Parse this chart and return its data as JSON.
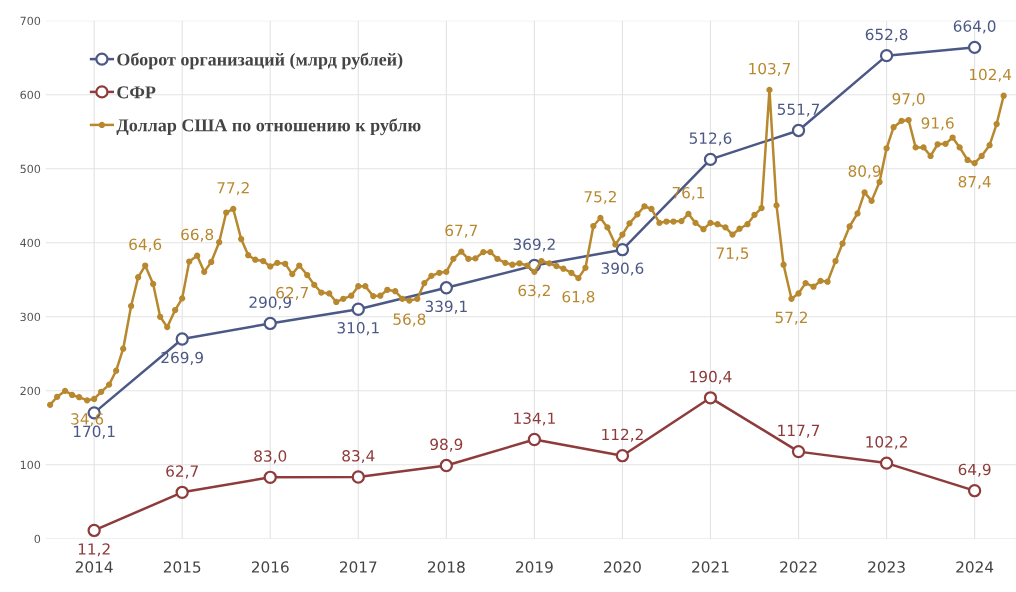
{
  "chart_data": {
    "type": "line",
    "x": [
      2014,
      2015,
      2016,
      2017,
      2018,
      2019,
      2020,
      2021,
      2022,
      2023,
      2024
    ],
    "series": [
      {
        "name": "Оборот организаций (млрд рублей)",
        "color": "#4c5885",
        "marker": "circle",
        "values": [
          170.1,
          269.9,
          290.9,
          310.1,
          339.1,
          369.2,
          390.6,
          512.6,
          551.7,
          652.8,
          664.0
        ],
        "value_labels": [
          "170,1",
          "269,9",
          "290,9",
          "310,1",
          "339,1",
          "369,2",
          "390,6",
          "512,6",
          "551,7",
          "652,8",
          "664,0"
        ]
      },
      {
        "name": "СФР",
        "color": "#8e3b3b",
        "marker": "circle",
        "values": [
          11.2,
          62.7,
          83.0,
          83.4,
          98.9,
          134.1,
          112.2,
          190.4,
          117.7,
          102.2,
          64.9
        ],
        "value_labels": [
          "11,2",
          "62,7",
          "83,0",
          "83,4",
          "98,9",
          "134,1",
          "112,2",
          "190,4",
          "117,7",
          "102,2",
          "64,9"
        ]
      },
      {
        "name": "Доллар США по отношению к рублю",
        "color": "#b8882f",
        "marker": "dot",
        "axis": "y2",
        "x": [
          2013.5,
          2013.58,
          2013.67,
          2013.75,
          2013.83,
          2013.92,
          2014.0,
          2014.08,
          2014.17,
          2014.25,
          2014.33,
          2014.42,
          2014.5,
          2014.58,
          2014.67,
          2014.75,
          2014.83,
          2014.92,
          2015.0,
          2015.08,
          2015.17,
          2015.25,
          2015.33,
          2015.42,
          2015.5,
          2015.58,
          2015.67,
          2015.75,
          2015.83,
          2015.92,
          2016.0,
          2016.08,
          2016.17,
          2016.25,
          2016.33,
          2016.42,
          2016.5,
          2016.58,
          2016.67,
          2016.75,
          2016.83,
          2016.92,
          2017.0,
          2017.08,
          2017.17,
          2017.25,
          2017.33,
          2017.42,
          2017.5,
          2017.58,
          2017.67,
          2017.75,
          2017.83,
          2017.92,
          2018.0,
          2018.08,
          2018.17,
          2018.25,
          2018.33,
          2018.42,
          2018.5,
          2018.58,
          2018.67,
          2018.75,
          2018.83,
          2018.92,
          2019.0,
          2019.08,
          2019.17,
          2019.25,
          2019.33,
          2019.42,
          2019.5,
          2019.58,
          2019.67,
          2019.75,
          2019.83,
          2019.92,
          2020.0,
          2020.08,
          2020.17,
          2020.25,
          2020.33,
          2020.42,
          2020.5,
          2020.58,
          2020.67,
          2020.75,
          2020.83,
          2020.92,
          2021.0,
          2021.08,
          2021.17,
          2021.25,
          2021.33,
          2021.42,
          2021.5,
          2021.58,
          2021.67,
          2021.75,
          2021.83,
          2021.92,
          2022.0,
          2022.08,
          2022.17,
          2022.25,
          2022.33,
          2022.42,
          2022.5,
          2022.58,
          2022.67,
          2022.75,
          2022.83,
          2022.92,
          2023.0,
          2023.08,
          2023.17,
          2023.25,
          2023.33,
          2023.42,
          2023.5,
          2023.58,
          2023.67,
          2023.75,
          2023.83,
          2023.92,
          2024.0,
          2024.08,
          2024.17,
          2024.25,
          2024.33
        ],
        "values": [
          33.6,
          35.4,
          36.7,
          35.8,
          35.3,
          34.6,
          34.9,
          36.5,
          38.1,
          41.2,
          46.1,
          55.6,
          62.0,
          64.6,
          60.5,
          53.2,
          50.9,
          54.7,
          57.3,
          65.5,
          66.8,
          63.2,
          65.4,
          69.8,
          76.4,
          77.2,
          70.5,
          66.9,
          65.9,
          65.6,
          64.4,
          65.2,
          65.0,
          62.7,
          64.6,
          62.5,
          60.3,
          58.6,
          58.4,
          56.5,
          57.2,
          57.9,
          60.0,
          60.0,
          57.8,
          57.9,
          59.2,
          58.9,
          57.2,
          56.8,
          57.2,
          60.7,
          62.3,
          63.0,
          63.2,
          66.1,
          67.7,
          66.1,
          66.2,
          67.6,
          67.6,
          66.1,
          65.2,
          64.8,
          65.1,
          64.6,
          63.2,
          65.6,
          65.1,
          64.5,
          63.9,
          63.0,
          61.8,
          64.1,
          73.4,
          75.2,
          73.1,
          69.3,
          71.5,
          74.0,
          76.0,
          77.8,
          77.2,
          74.1,
          74.4,
          74.4,
          74.5,
          76.1,
          74.1,
          72.7,
          74.1,
          73.8,
          73.1,
          71.5,
          72.8,
          73.8,
          75.9,
          77.4,
          103.7,
          78.0,
          64.8,
          57.2,
          58.4,
          60.7,
          59.9,
          61.2,
          61.0,
          65.6,
          69.5,
          73.3,
          76.2,
          80.9,
          79.0,
          83.2,
          90.7,
          95.4,
          96.8,
          97.0,
          90.9,
          90.9,
          89.0,
          91.6,
          91.7,
          93.1,
          90.9,
          88.1,
          87.4,
          89.0,
          91.4,
          96.1,
          102.4
        ],
        "value_labels": [
          null,
          null,
          null,
          null,
          null,
          "34,6",
          null,
          null,
          null,
          null,
          null,
          null,
          null,
          "64,6",
          null,
          null,
          null,
          null,
          null,
          null,
          "66,8",
          null,
          null,
          null,
          null,
          "77,2",
          null,
          null,
          null,
          null,
          null,
          null,
          null,
          "62,7",
          null,
          null,
          null,
          null,
          null,
          null,
          null,
          null,
          null,
          null,
          null,
          null,
          null,
          null,
          null,
          "56,8",
          null,
          null,
          null,
          null,
          null,
          null,
          "67,7",
          null,
          null,
          null,
          null,
          null,
          null,
          null,
          null,
          null,
          "63,2",
          null,
          null,
          null,
          null,
          null,
          "61,8",
          null,
          null,
          "75,2",
          null,
          null,
          null,
          null,
          null,
          null,
          null,
          null,
          null,
          null,
          null,
          "76,1",
          null,
          null,
          null,
          null,
          null,
          "71,5",
          null,
          null,
          null,
          null,
          "103,7",
          null,
          null,
          "57,2",
          null,
          null,
          null,
          null,
          null,
          null,
          null,
          null,
          null,
          "80,9",
          null,
          null,
          null,
          null,
          null,
          "97,0",
          null,
          null,
          null,
          "91,6",
          null,
          null,
          null,
          null,
          "87,4",
          null,
          null,
          null,
          "102,4"
        ]
      }
    ],
    "xlim": [
      2013.45,
      2024.47
    ],
    "xticks": [
      2014,
      2015,
      2016,
      2017,
      2018,
      2019,
      2020,
      2021,
      2022,
      2023,
      2024
    ],
    "ylim": [
      0,
      700
    ],
    "yticks": [
      0,
      100,
      200,
      300,
      400,
      500,
      600,
      700
    ],
    "y2lim": [
      3.8,
      119.1
    ],
    "grid": true,
    "legend": "top left"
  }
}
